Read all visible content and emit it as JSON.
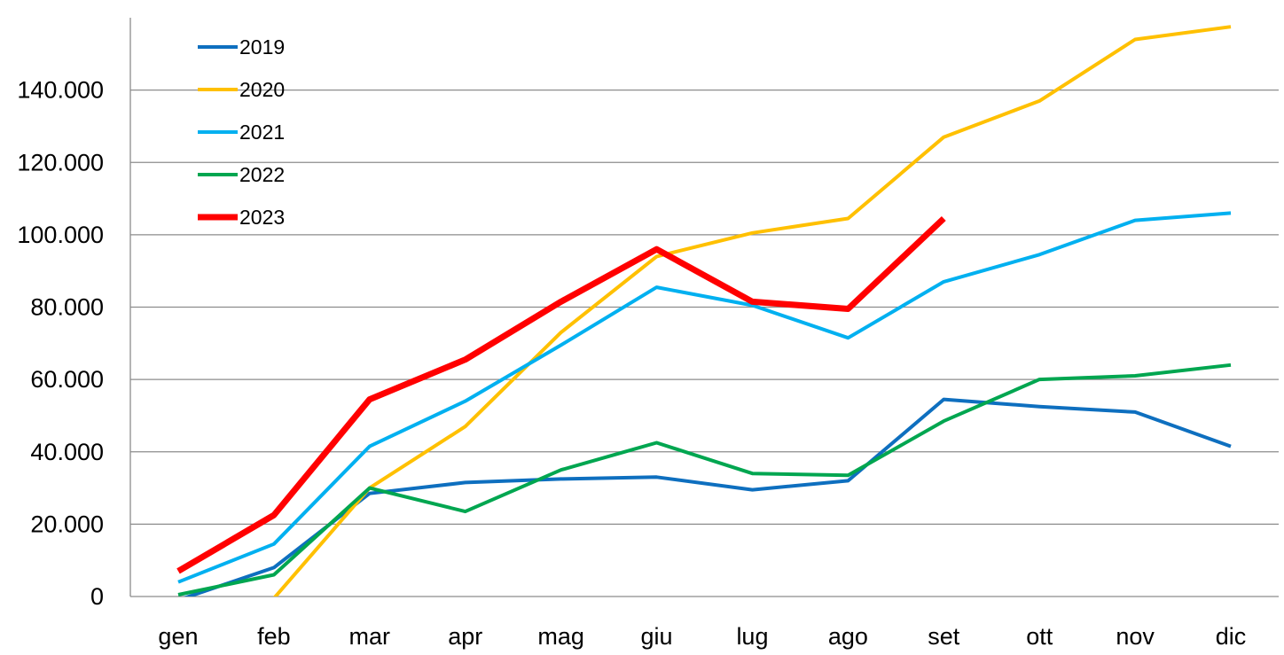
{
  "chart_data": {
    "type": "line",
    "title": "",
    "xlabel": "",
    "ylabel": "",
    "categories": [
      "gen",
      "feb",
      "mar",
      "apr",
      "mag",
      "giu",
      "lug",
      "ago",
      "set",
      "ott",
      "nov",
      "dic"
    ],
    "ylim": [
      0,
      160000
    ],
    "yticks": [
      0,
      20000,
      40000,
      60000,
      80000,
      100000,
      120000,
      140000
    ],
    "ytick_labels": [
      "0",
      "20.000",
      "40.000",
      "60.000",
      "80.000",
      "100.000",
      "120.000",
      "140.000"
    ],
    "grid": "horizontal",
    "legend_position": "top-left",
    "series": [
      {
        "name": "2019",
        "color": "#0e6fbf",
        "values": [
          -1000,
          8000,
          28500,
          31500,
          32500,
          33000,
          29500,
          32000,
          54500,
          52500,
          51000,
          41500
        ]
      },
      {
        "name": "2020",
        "color": "#ffc000",
        "values": [
          null,
          -500,
          30000,
          47000,
          73000,
          94000,
          100500,
          104500,
          127000,
          137000,
          154000,
          157500
        ]
      },
      {
        "name": "2021",
        "color": "#00b0f0",
        "values": [
          4000,
          14500,
          41500,
          54000,
          69500,
          85500,
          80500,
          71500,
          87000,
          94500,
          104000,
          106000
        ]
      },
      {
        "name": "2022",
        "color": "#00a650",
        "values": [
          500,
          6000,
          30000,
          23500,
          35000,
          42500,
          34000,
          33500,
          48500,
          60000,
          61000,
          64000
        ]
      },
      {
        "name": "2023",
        "color": "#ff0000",
        "values": [
          7000,
          22500,
          54500,
          65500,
          81500,
          96000,
          81500,
          79500,
          104500,
          null,
          null,
          null
        ]
      }
    ]
  }
}
